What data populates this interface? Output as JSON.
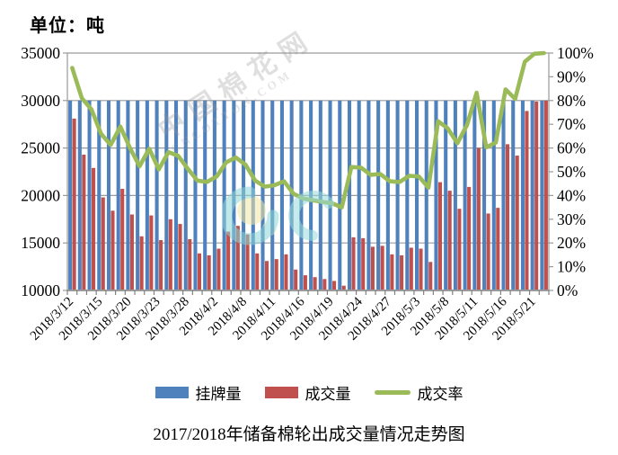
{
  "unit_label": "单位：吨",
  "title": "2017/2018年储备棉轮出成交量情况走势图",
  "legend": [
    {
      "label": "挂牌量",
      "color": "#4F81BD",
      "type": "bar"
    },
    {
      "label": "成交量",
      "color": "#C0504D",
      "type": "bar"
    },
    {
      "label": "成交率",
      "color": "#9BBB59",
      "type": "line"
    }
  ],
  "watermark": {
    "text_cn": "中国棉花网",
    "text_en": "CNCOTTON.COM"
  },
  "chart_data": {
    "type": "bar+line combo",
    "n_points": 50,
    "grid": true,
    "legend_position": "bottom",
    "left_axis": {
      "min": 10000,
      "max": 35000,
      "step": 5000,
      "tick_labels": [
        "10000",
        "15000",
        "20000",
        "25000",
        "30000",
        "35000"
      ]
    },
    "right_axis": {
      "min": 0,
      "max": 100,
      "step": 10,
      "tick_labels": [
        "0%",
        "10%",
        "20%",
        "30%",
        "40%",
        "50%",
        "60%",
        "70%",
        "80%",
        "90%",
        "100%"
      ]
    },
    "x_tick_labels": [
      {
        "index": 0,
        "label": "2018/3/12"
      },
      {
        "index": 3,
        "label": "2018/3/15"
      },
      {
        "index": 6,
        "label": "2018/3/20"
      },
      {
        "index": 9,
        "label": "2018/3/23"
      },
      {
        "index": 12,
        "label": "2018/3/28"
      },
      {
        "index": 15,
        "label": "2018/4/2"
      },
      {
        "index": 18,
        "label": "2018/4/8"
      },
      {
        "index": 21,
        "label": "2018/4/11"
      },
      {
        "index": 24,
        "label": "2018/4/16"
      },
      {
        "index": 27,
        "label": "2018/4/19"
      },
      {
        "index": 30,
        "label": "2018/4/24"
      },
      {
        "index": 33,
        "label": "2018/4/27"
      },
      {
        "index": 36,
        "label": "2018/5/3"
      },
      {
        "index": 39,
        "label": "2018/5/8"
      },
      {
        "index": 42,
        "label": "2018/5/11"
      },
      {
        "index": 45,
        "label": "2018/5/16"
      },
      {
        "index": 48,
        "label": "2018/5/21"
      }
    ],
    "series": [
      {
        "name": "挂牌量",
        "type": "bar",
        "axis": "left",
        "color": "#4F81BD",
        "values": [
          30000,
          30000,
          30000,
          30000,
          30000,
          30000,
          30000,
          30000,
          30000,
          30000,
          30000,
          30000,
          30000,
          30000,
          30000,
          30000,
          30000,
          30000,
          30000,
          30000,
          30000,
          30000,
          30000,
          30000,
          30000,
          30000,
          30000,
          30000,
          30000,
          30000,
          30000,
          30000,
          30000,
          30000,
          30000,
          30000,
          30000,
          30000,
          30000,
          30000,
          30000,
          30000,
          30000,
          30000,
          30000,
          30000,
          30000,
          30000,
          30000,
          30000
        ]
      },
      {
        "name": "成交量",
        "type": "bar",
        "axis": "left",
        "color": "#C0504D",
        "values": [
          28100,
          24300,
          22900,
          19800,
          18400,
          20700,
          18000,
          15700,
          17900,
          15300,
          17500,
          17000,
          15400,
          13900,
          13700,
          14400,
          16200,
          16800,
          15900,
          13900,
          13100,
          13300,
          13800,
          12200,
          11600,
          11400,
          11200,
          11000,
          10500,
          15600,
          15500,
          14600,
          14700,
          13800,
          13700,
          14500,
          14400,
          13000,
          21400,
          20500,
          18600,
          20900,
          25000,
          18100,
          18700,
          25400,
          24200,
          28900,
          29900,
          30000
        ]
      },
      {
        "name": "成交率",
        "type": "line",
        "axis": "right",
        "color": "#9BBB59",
        "values": [
          93.7,
          81.0,
          76.3,
          66.0,
          61.3,
          69.0,
          60.0,
          52.3,
          59.7,
          51.0,
          58.3,
          56.7,
          51.3,
          46.3,
          45.7,
          48.0,
          54.0,
          56.0,
          53.0,
          46.3,
          43.7,
          44.3,
          46.0,
          40.7,
          38.7,
          38.0,
          37.3,
          36.7,
          35.0,
          52.0,
          51.7,
          48.7,
          49.0,
          46.0,
          45.7,
          48.3,
          48.0,
          43.3,
          71.3,
          68.3,
          62.0,
          69.7,
          83.3,
          60.3,
          62.3,
          84.7,
          80.7,
          96.3,
          99.7,
          100.0
        ]
      }
    ]
  }
}
